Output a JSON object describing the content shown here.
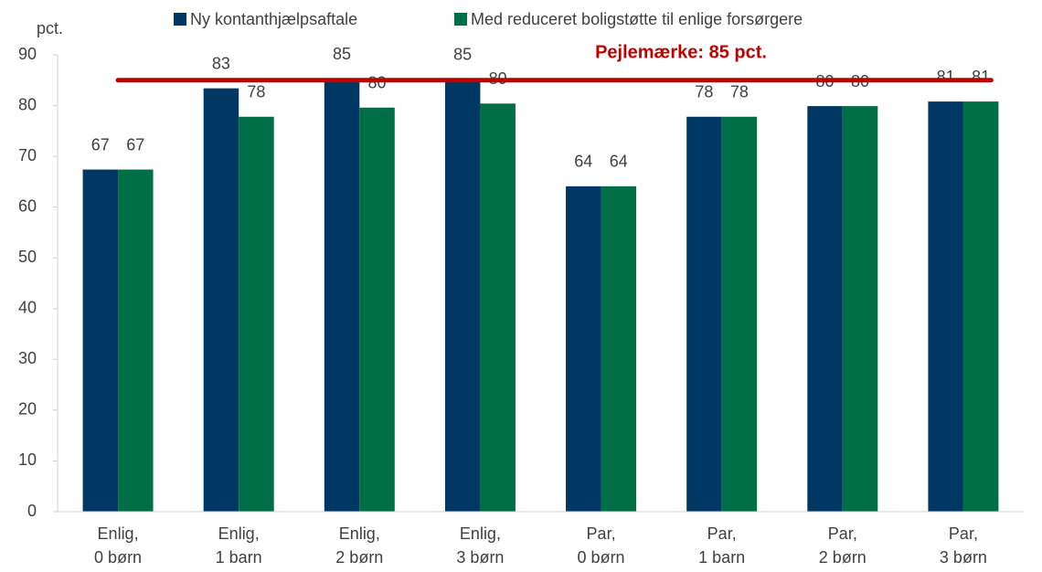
{
  "chart_data": {
    "type": "bar",
    "y_label": "pct.",
    "categories": [
      [
        "Enlig,",
        "0 børn"
      ],
      [
        "Enlig,",
        "1 barn"
      ],
      [
        "Enlig,",
        "2 børn"
      ],
      [
        "Enlig,",
        "3 børn"
      ],
      [
        "Par,",
        "0 børn"
      ],
      [
        "Par,",
        "1 barn"
      ],
      [
        "Par,",
        "2 børn"
      ],
      [
        "Par,",
        "3 børn"
      ]
    ],
    "series": [
      {
        "name": "Ny kontanthjælpsaftale",
        "color": "#003865",
        "values": [
          67.4,
          83.4,
          85.3,
          85.2,
          64.1,
          77.8,
          79.9,
          80.8
        ],
        "value_labels": [
          "67",
          "83",
          "85",
          "85",
          "64",
          "78",
          "80",
          "81"
        ]
      },
      {
        "name": "Med reduceret boligstøtte til enlige forsørgere",
        "color": "#006e46",
        "values": [
          67.4,
          77.8,
          79.6,
          80.4,
          64.1,
          77.8,
          79.9,
          80.8
        ],
        "value_labels": [
          "67",
          "78",
          "80",
          "80",
          "64",
          "78",
          "80",
          "81"
        ]
      }
    ],
    "reference_line": {
      "value": 85,
      "label": "Pejlemærke: 85 pct.",
      "color": "#c00000"
    },
    "ylim": [
      0,
      90
    ],
    "yticks": [
      0,
      10,
      20,
      30,
      40,
      50,
      60,
      70,
      80,
      90
    ],
    "grid": false,
    "legend": "top"
  }
}
